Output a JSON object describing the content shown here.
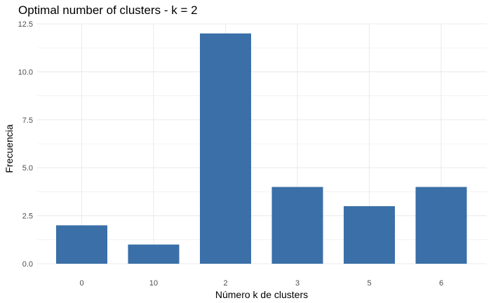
{
  "chart_data": {
    "type": "bar",
    "title": "Optimal number of clusters - k = 2",
    "xlabel": "Número k de clusters",
    "ylabel": "Frecuencia",
    "categories": [
      "0",
      "10",
      "2",
      "3",
      "5",
      "6"
    ],
    "values": [
      2,
      1,
      12,
      4,
      3,
      4
    ],
    "ylim": [
      0,
      12.5
    ],
    "yticks": [
      "0.0",
      "2.5",
      "5.0",
      "7.5",
      "10.0",
      "12.5"
    ],
    "grid": true,
    "bar_color": "#3a6fa8",
    "grid_color": "#ebebeb"
  }
}
